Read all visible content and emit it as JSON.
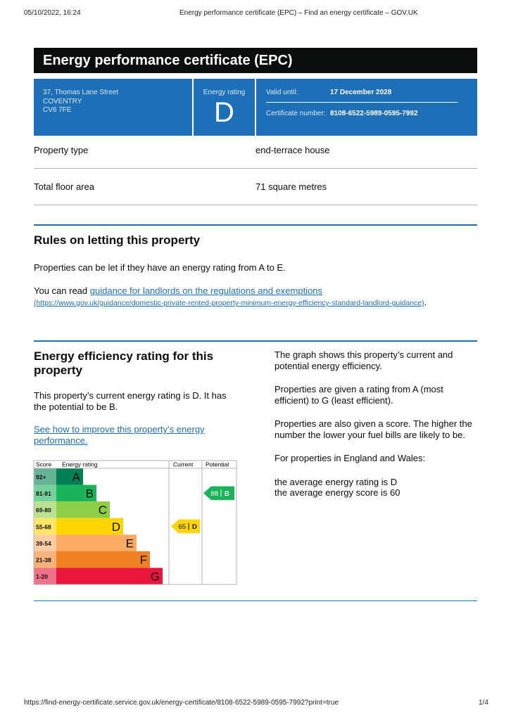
{
  "print_header": {
    "datetime": "05/10/2022, 16:24",
    "title": "Energy performance certificate (EPC) – Find an energy certificate – GOV.UK"
  },
  "header": {
    "title": "Energy performance certificate (EPC)"
  },
  "summary": {
    "address": [
      "37, Thomas Lane Street",
      "COVENTRY",
      "CV6 7FE"
    ],
    "rating_label": "Energy rating",
    "rating": "D",
    "valid_until_label": "Valid until:",
    "valid_until": "17 December 2028",
    "certificate_number_label": "Certificate number:",
    "certificate_number": "8108-6522-5989-0595-7992"
  },
  "property": {
    "rows": [
      [
        "Property type",
        "end-terrace house"
      ],
      [
        "Total floor area",
        "71 square metres"
      ]
    ]
  },
  "letting": {
    "heading": "Rules on letting this property",
    "paragraph": "Properties can be let if they have an energy rating from A to E.",
    "read_prefix": "You can read ",
    "link_text": "guidance for landlords on the regulations and exemptions",
    "link_url": "(https://www.gov.uk/guidance/domestic-private-rented-property-minimum-energy-efficiency-standard-landlord-guidance)",
    "read_suffix": "."
  },
  "efficiency": {
    "heading": "Energy efficiency rating for this property",
    "paragraph": "This property’s current energy rating is D. It has the potential to be B.",
    "link_text": "See how to improve this property’s energy performance.",
    "right_paragraphs": [
      "The graph shows this property’s current and potential energy efficiency.",
      "Properties are given a rating from A (most efficient) to G (least efficient).",
      "Properties are also given a score. The higher the number the lower your fuel bills are likely to be.",
      "For properties in England and Wales:"
    ],
    "average_rating": "the average energy rating is D",
    "average_score": "the average energy score is 60"
  },
  "epc_chart": {
    "headers": [
      "Score",
      "Energy rating",
      "Current",
      "Potential"
    ],
    "bands": [
      {
        "score": "92+",
        "letter": "A"
      },
      {
        "score": "81-91",
        "letter": "B"
      },
      {
        "score": "69-80",
        "letter": "C"
      },
      {
        "score": "55-68",
        "letter": "D"
      },
      {
        "score": "39-54",
        "letter": "E"
      },
      {
        "score": "21-38",
        "letter": "F"
      },
      {
        "score": "1-20",
        "letter": "G"
      }
    ],
    "current": {
      "score": 65,
      "band": "D"
    },
    "potential": {
      "score": 88,
      "band": "B"
    }
  },
  "footer": {
    "url": "https://find-energy-certificate.service.gov.uk/energy-certificate/8108-6522-5989-0595-7992?print=true",
    "page": "1/4"
  }
}
